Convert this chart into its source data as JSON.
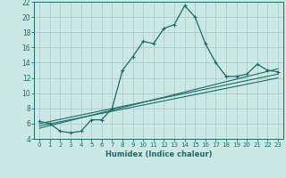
{
  "xlabel": "Humidex (Indice chaleur)",
  "xlim": [
    -0.5,
    23.5
  ],
  "ylim": [
    4,
    22
  ],
  "xticks": [
    0,
    1,
    2,
    3,
    4,
    5,
    6,
    7,
    8,
    9,
    10,
    11,
    12,
    13,
    14,
    15,
    16,
    17,
    18,
    19,
    20,
    21,
    22,
    23
  ],
  "yticks": [
    4,
    6,
    8,
    10,
    12,
    14,
    16,
    18,
    20,
    22
  ],
  "bg_color": "#cce8e4",
  "grid_color": "#aaccca",
  "line_color": "#1a6b6b",
  "main_x": [
    0,
    1,
    2,
    3,
    4,
    5,
    6,
    7,
    8,
    9,
    10,
    11,
    12,
    13,
    14,
    15,
    16,
    17,
    18,
    19,
    20,
    21,
    22,
    23
  ],
  "main_y": [
    6.3,
    6.0,
    5.0,
    4.8,
    5.0,
    6.5,
    6.5,
    8.0,
    13.0,
    14.8,
    16.8,
    16.5,
    18.5,
    19.0,
    21.5,
    20.0,
    16.5,
    14.0,
    12.2,
    12.2,
    12.5,
    13.8,
    13.0,
    12.8
  ],
  "line1_x": [
    0,
    23
  ],
  "line1_y": [
    6.0,
    12.5
  ],
  "line2_x": [
    0,
    23
  ],
  "line2_y": [
    5.7,
    12.0
  ],
  "line3_x": [
    0,
    23
  ],
  "line3_y": [
    5.4,
    13.2
  ]
}
